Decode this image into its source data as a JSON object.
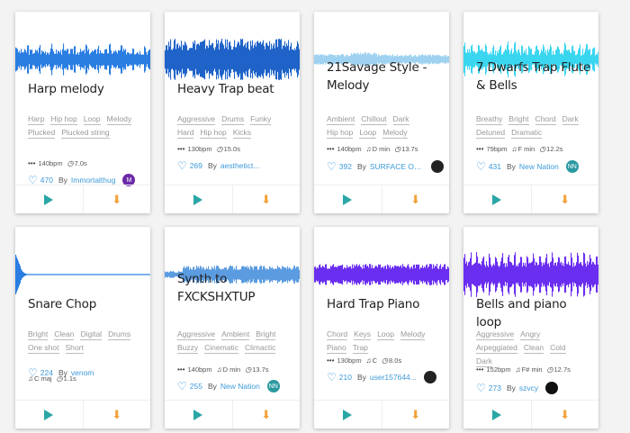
{
  "cards": [
    {
      "title": "Harp melody",
      "tags": [
        "Harp",
        "Hip hop",
        "Loop",
        "Melody",
        "Plucked",
        "Plucked string"
      ],
      "bpm": "140bpm",
      "key": "",
      "duration": "7.0s",
      "likes": "470",
      "by": "By",
      "author": "Immortalthug",
      "avatar": "M",
      "color": "#2a7de1"
    },
    {
      "title": "Heavy Trap beat",
      "tags": [
        "Aggressive",
        "Drums",
        "Funky",
        "Hard",
        "Hip hop",
        "Kicks"
      ],
      "bpm": "130bpm",
      "key": "",
      "duration": "15.0s",
      "likes": "269",
      "by": "By",
      "author": "aesthetict...",
      "avatar": "",
      "color": "#1f63c9"
    },
    {
      "title": "21Savage Style - Melody",
      "tags": [
        "Ambient",
        "Chillout",
        "Dark",
        "Hip hop",
        "Loop",
        "Melody"
      ],
      "bpm": "140bpm",
      "key": "D min",
      "duration": "13.7s",
      "likes": "392",
      "by": "By",
      "author": "SURFACE OCEAN",
      "avatar": "",
      "color": "#9fd2f0"
    },
    {
      "title": "7 Dwarfs Trap Flute & Bells",
      "tags": [
        "Breathy",
        "Bright",
        "Chord",
        "Dark",
        "Detuned",
        "Dramatic"
      ],
      "bpm": "79bpm",
      "key": "F min",
      "duration": "12.2s",
      "likes": "431",
      "by": "By",
      "author": "New Nation",
      "avatar": "NN",
      "color": "#3ad6f0"
    },
    {
      "title": "Snare Chop",
      "tags": [
        "Bright",
        "Clean",
        "Digital",
        "Drums",
        "One shot",
        "Short"
      ],
      "bpm": "",
      "key": "C maj",
      "duration": "1.1s",
      "likes": "224",
      "by": "By",
      "author": "venom",
      "avatar": "",
      "color": "#2a7de1"
    },
    {
      "title": "Synth to FXCKSHXTUP",
      "tags": [
        "Aggressive",
        "Ambient",
        "Bright",
        "Buzzy",
        "Cinematic",
        "Climactic"
      ],
      "bpm": "140bpm",
      "key": "D min",
      "duration": "13.7s",
      "likes": "255",
      "by": "By",
      "author": "New Nation",
      "avatar": "NN",
      "color": "#5b9be0"
    },
    {
      "title": "Hard Trap Piano",
      "tags": [
        "Chord",
        "Keys",
        "Loop",
        "Melody",
        "Piano",
        "Trap"
      ],
      "bpm": "130bpm",
      "key": "C",
      "duration": "8.0s",
      "likes": "210",
      "by": "By",
      "author": "user157644...",
      "avatar": "",
      "color": "#6a2ef0"
    },
    {
      "title": "Bells and piano loop",
      "tags": [
        "Aggressive",
        "Angry",
        "Arpeggiated",
        "Clean",
        "Cold",
        "Dark"
      ],
      "bpm": "152bpm",
      "key": "F# min",
      "duration": "12.7s",
      "likes": "273",
      "by": "By",
      "author": "szvcy",
      "avatar": "",
      "color": "#6a2ef0"
    }
  ],
  "icons": {
    "bpm": "bpm-dots-icon",
    "key": "music-note-icon",
    "duration": "clock-icon",
    "likes": "heart-icon",
    "play": "play-icon",
    "download": "download-icon"
  }
}
